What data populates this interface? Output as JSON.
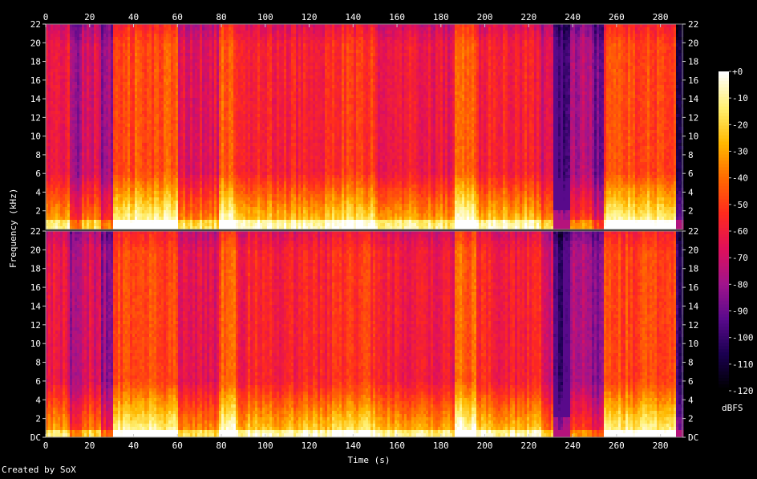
{
  "chart_data": {
    "type": "heatmap",
    "title": "",
    "xlabel": "Time (s)",
    "ylabel": "Frequency (kHz)",
    "colorbar_label": "dBFS",
    "credit": "Created by SoX",
    "channels": 2,
    "x_range": [
      0,
      290
    ],
    "x_ticks": [
      0,
      20,
      40,
      60,
      80,
      100,
      120,
      140,
      160,
      180,
      200,
      220,
      240,
      260,
      280
    ],
    "y_range_khz": [
      0,
      22
    ],
    "y_ticks_channel1": [
      "22",
      "20",
      "18",
      "16",
      "14",
      "12",
      "10",
      "8",
      "6",
      "4",
      "2"
    ],
    "y_ticks_channel2": [
      "22",
      "20",
      "18",
      "16",
      "14",
      "12",
      "10",
      "8",
      "6",
      "4",
      "2",
      "DC"
    ],
    "colorbar_range_dbfs": [
      -120,
      0
    ],
    "colorbar_ticks": [
      "+0",
      "-10",
      "-20",
      "-30",
      "-40",
      "-50",
      "-60",
      "-70",
      "-80",
      "-90",
      "-100",
      "-110",
      "-120"
    ],
    "grid": false,
    "colormap": [
      "#000000",
      "#1a0050",
      "#5a0a8c",
      "#a0148c",
      "#e0105a",
      "#ff2a1e",
      "#ff6a00",
      "#ffb800",
      "#fff070",
      "#ffffff"
    ],
    "energy_segments": [
      {
        "start": 0,
        "end": 10,
        "level": 0.55
      },
      {
        "start": 10,
        "end": 16,
        "level": 0.35
      },
      {
        "start": 16,
        "end": 25,
        "level": 0.5
      },
      {
        "start": 25,
        "end": 30,
        "level": 0.35
      },
      {
        "start": 30,
        "end": 60,
        "level": 0.72
      },
      {
        "start": 60,
        "end": 78,
        "level": 0.52
      },
      {
        "start": 78,
        "end": 86,
        "level": 0.75
      },
      {
        "start": 86,
        "end": 130,
        "level": 0.6
      },
      {
        "start": 130,
        "end": 150,
        "level": 0.66
      },
      {
        "start": 150,
        "end": 172,
        "level": 0.58
      },
      {
        "start": 172,
        "end": 186,
        "level": 0.55
      },
      {
        "start": 186,
        "end": 196,
        "level": 0.76
      },
      {
        "start": 196,
        "end": 225,
        "level": 0.6
      },
      {
        "start": 225,
        "end": 231,
        "level": 0.48
      },
      {
        "start": 231,
        "end": 238,
        "level": 0.18
      },
      {
        "start": 238,
        "end": 248,
        "level": 0.4
      },
      {
        "start": 248,
        "end": 254,
        "level": 0.28
      },
      {
        "start": 254,
        "end": 286,
        "level": 0.7
      },
      {
        "start": 286,
        "end": 290,
        "level": 0.12
      }
    ]
  }
}
